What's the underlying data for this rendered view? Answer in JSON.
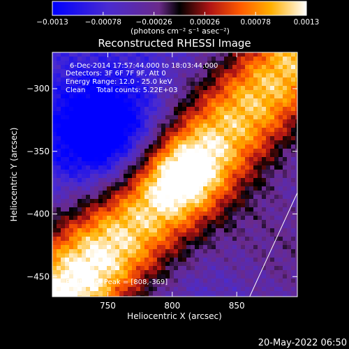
{
  "chart_data": {
    "type": "heatmap",
    "title": "Reconstructed RHESSI Image",
    "xlabel": "Heliocentric X (arcsec)",
    "ylabel": "Heliocentric Y (arcsec)",
    "xlim": [
      707,
      897
    ],
    "ylim": [
      -466,
      -271
    ],
    "x_ticks": [
      {
        "value": 750,
        "label": "750"
      },
      {
        "value": 800,
        "label": "800"
      },
      {
        "value": 850,
        "label": "850"
      }
    ],
    "y_ticks": [
      {
        "value": -300,
        "label": "−300"
      },
      {
        "value": -350,
        "label": "−350"
      },
      {
        "value": -400,
        "label": "−400"
      },
      {
        "value": -450,
        "label": "−450"
      }
    ],
    "colorbar": {
      "min": -0.0013,
      "max": 0.0013,
      "ticks": [
        {
          "value": -0.0013,
          "label": "−0.0013"
        },
        {
          "value": -0.00078,
          "label": "−0.00078"
        },
        {
          "value": -0.00026,
          "label": "−0.00026"
        },
        {
          "value": 0.00026,
          "label": "0.00026"
        },
        {
          "value": 0.00078,
          "label": "0.00078"
        },
        {
          "value": 0.0013,
          "label": "0.0013"
        }
      ],
      "units_label": "(photons cm⁻² s⁻¹ asec⁻²)"
    },
    "annotations": [
      "6-Dec-2014 17:57:44.000 to 18:03:44.000",
      "Detectors: 3F 6F 7F 9F, Att 0",
      "Energy Range: 12.0 - 25.0 keV",
      "Clean     Total counts: 5.22E+03"
    ],
    "peak_label": "Position of Peak = [808,-369]",
    "peak_position": [
      808,
      -369
    ],
    "limb_line": [
      [
        860,
        -466
      ],
      [
        897,
        -383
      ]
    ],
    "grid": false
  },
  "footer_timestamp": "20-May-2022 06:50"
}
